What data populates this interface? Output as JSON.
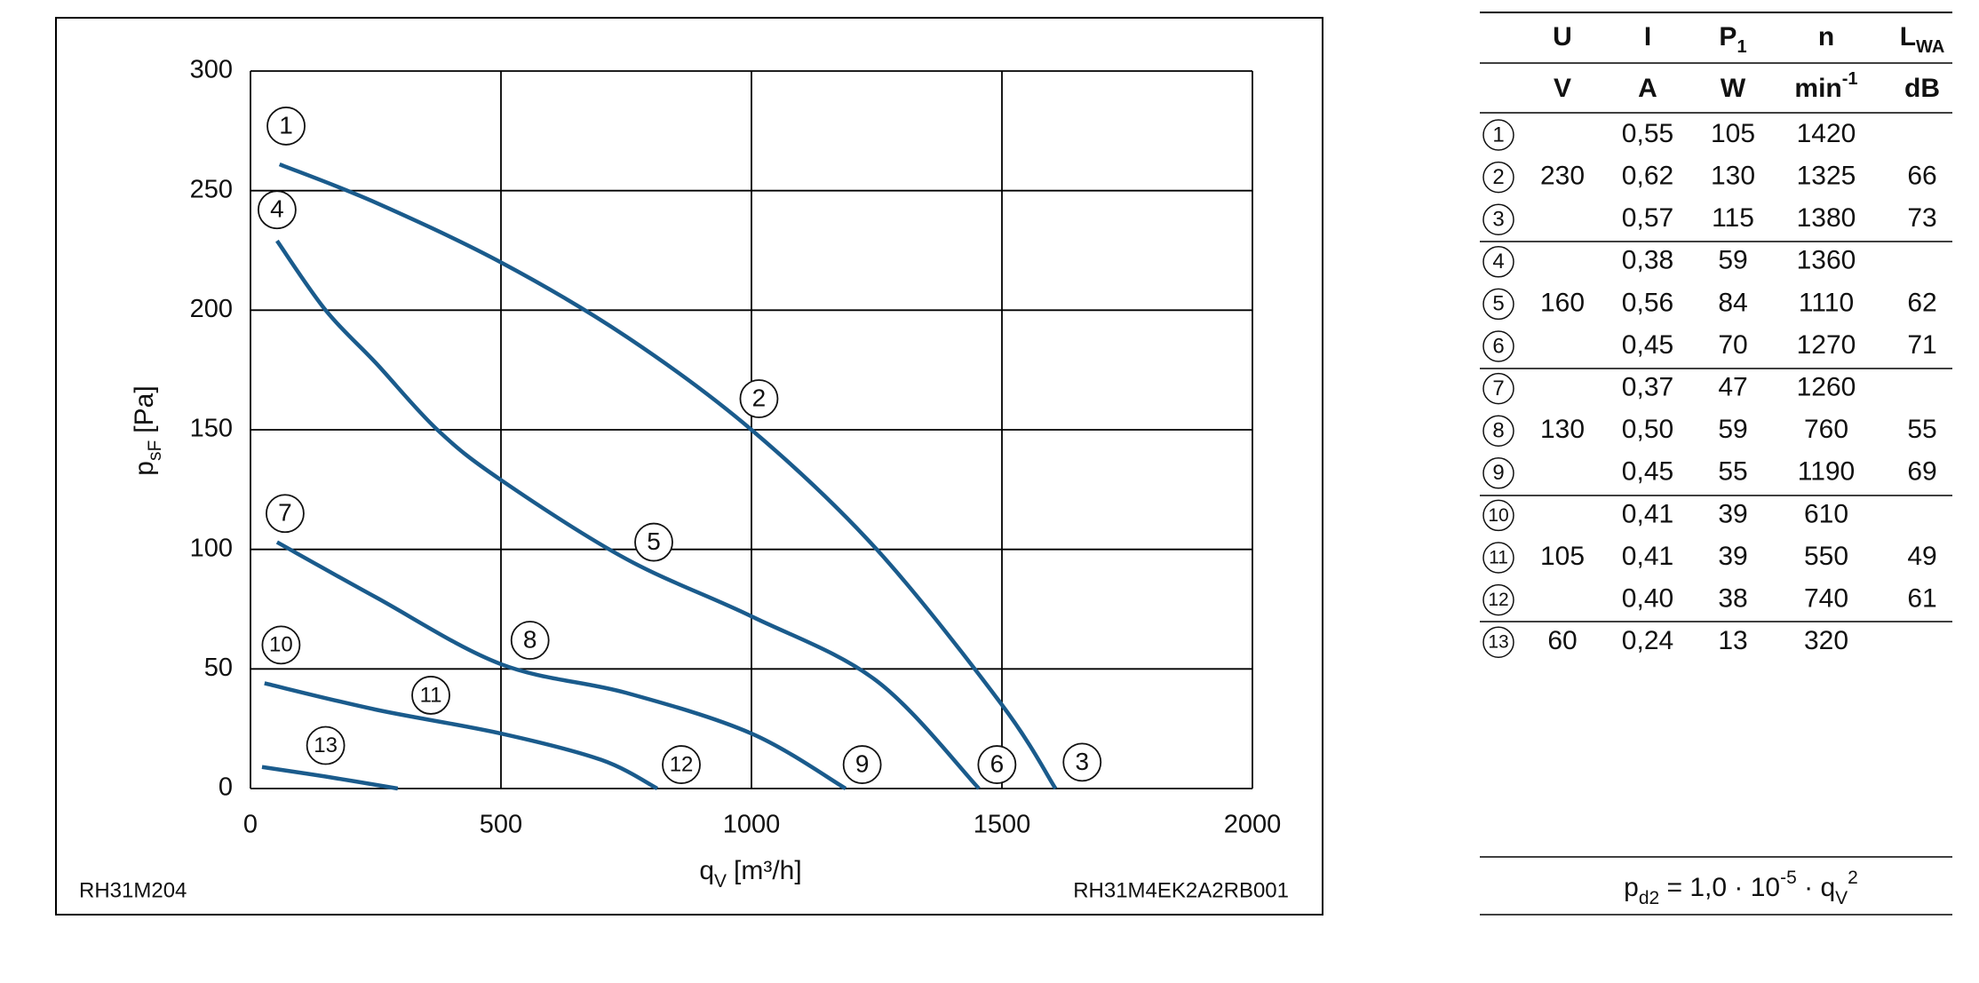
{
  "chart_data": {
    "type": "line",
    "xlabel": {
      "symbol": "q",
      "subscript": "V",
      "unit": "[m³/h]"
    },
    "ylabel": {
      "symbol": "p",
      "subscript": "sF",
      "unit": "[Pa]"
    },
    "xlim": [
      0,
      2000
    ],
    "xticks": [
      0,
      500,
      1000,
      1500,
      2000
    ],
    "ylim": [
      0,
      300
    ],
    "yticks": [
      0,
      50,
      100,
      150,
      200,
      250,
      300
    ],
    "grid": true,
    "color": "#1a5b8c",
    "series": [
      {
        "x": [
          58,
          250,
          500,
          750,
          1000,
          1250,
          1500,
          1607
        ],
        "values": [
          261,
          245,
          220,
          189,
          150,
          100,
          35,
          0
        ]
      },
      {
        "x": [
          53,
          150,
          250,
          373,
          500,
          750,
          1000,
          1250,
          1454
        ],
        "values": [
          229,
          200,
          178,
          150,
          129,
          96,
          72,
          45,
          0
        ]
      },
      {
        "x": [
          53,
          250,
          500,
          750,
          1000,
          1188
        ],
        "values": [
          103,
          80,
          52,
          40,
          23,
          0
        ]
      },
      {
        "x": [
          28,
          250,
          500,
          700,
          812
        ],
        "values": [
          44,
          33,
          23,
          12,
          0
        ]
      },
      {
        "x": [
          23,
          150,
          294
        ],
        "values": [
          9,
          5,
          0
        ]
      }
    ],
    "annotations": [
      {
        "text": "1",
        "x": 71,
        "y": 277
      },
      {
        "text": "2",
        "x": 1015,
        "y": 163
      },
      {
        "text": "3",
        "x": 1660,
        "y": 11
      },
      {
        "text": "4",
        "x": 53,
        "y": 242
      },
      {
        "text": "5",
        "x": 805,
        "y": 103
      },
      {
        "text": "6",
        "x": 1490,
        "y": 10
      },
      {
        "text": "7",
        "x": 69,
        "y": 115
      },
      {
        "text": "8",
        "x": 558,
        "y": 62
      },
      {
        "text": "9",
        "x": 1221,
        "y": 10
      },
      {
        "text": "10",
        "x": 61,
        "y": 60
      },
      {
        "text": "11",
        "x": 360,
        "y": 39
      },
      {
        "text": "12",
        "x": 860,
        "y": 10
      },
      {
        "text": "13",
        "x": 150,
        "y": 18
      }
    ],
    "footer_left": "RH31M204",
    "footer_right": "RH31M4EK2A2RB001"
  },
  "table": {
    "header": [
      null,
      "U",
      "I",
      {
        "text": "P",
        "sub": "1"
      },
      "n",
      {
        "text": "L",
        "sub": "WA"
      }
    ],
    "units": [
      null,
      "V",
      "A",
      "W",
      {
        "text": "min",
        "sup": "-1"
      },
      "dB"
    ],
    "rows": [
      [
        "1",
        null,
        "0,55",
        "105",
        "1420",
        null
      ],
      [
        "2",
        "230",
        "0,62",
        "130",
        "1325",
        "66"
      ],
      [
        "3",
        null,
        "0,57",
        "115",
        "1380",
        "73"
      ],
      [
        "4",
        null,
        "0,38",
        "59",
        "1360",
        null
      ],
      [
        "5",
        "160",
        "0,56",
        "84",
        "1110",
        "62"
      ],
      [
        "6",
        null,
        "0,45",
        "70",
        "1270",
        "71"
      ],
      [
        "7",
        null,
        "0,37",
        "47",
        "1260",
        null
      ],
      [
        "8",
        "130",
        "0,50",
        "59",
        "760",
        "55"
      ],
      [
        "9",
        null,
        "0,45",
        "55",
        "1190",
        "69"
      ],
      [
        "10",
        null,
        "0,41",
        "39",
        "610",
        null
      ],
      [
        "11",
        "105",
        "0,41",
        "39",
        "550",
        "49"
      ],
      [
        "12",
        null,
        "0,40",
        "38",
        "740",
        "61"
      ],
      [
        "13",
        "60",
        "0,24",
        "13",
        "320",
        null
      ]
    ]
  },
  "formula": [
    {
      "text": "p"
    },
    {
      "sub": "d2"
    },
    {
      "text": " = 1,0 · 10"
    },
    {
      "sup": "-5"
    },
    {
      "text": " · q"
    },
    {
      "sub": "V"
    },
    {
      "sup": "2"
    }
  ]
}
